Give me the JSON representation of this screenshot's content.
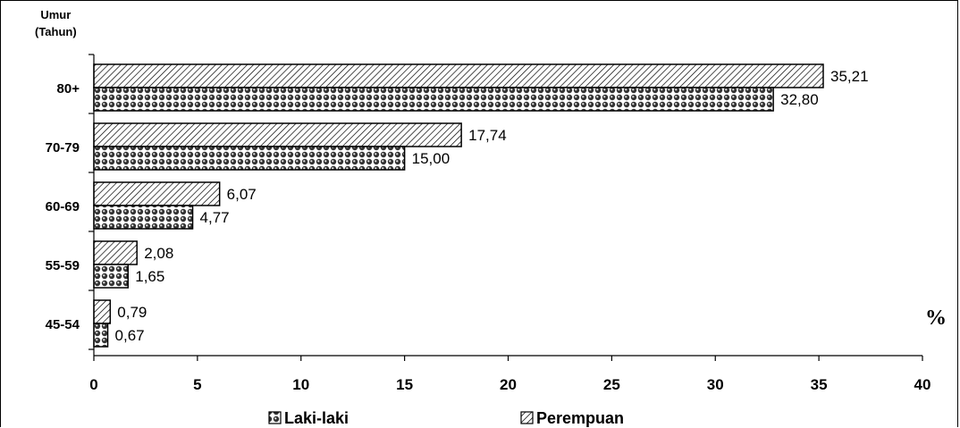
{
  "chart_data": {
    "type": "bar",
    "orientation": "horizontal",
    "ylabel": "Umur (Tahun)",
    "ylabel_lines": [
      "Umur",
      "(Tahun)"
    ],
    "unit_label": "%",
    "categories": [
      "80+",
      "70-79",
      "60-69",
      "55-59",
      "45-54"
    ],
    "series": [
      {
        "name": "Perempuan",
        "values": [
          35.21,
          17.74,
          6.07,
          2.08,
          0.79
        ],
        "labels": [
          "35,21",
          "17,74",
          "6,07",
          "2,08",
          "0,79"
        ],
        "pattern": "diagonal-hatch"
      },
      {
        "name": "Laki-laki",
        "values": [
          32.8,
          15.0,
          4.77,
          1.65,
          0.67
        ],
        "labels": [
          "32,80",
          "15,00",
          "4,77",
          "1,65",
          "0,67"
        ],
        "pattern": "dots"
      }
    ],
    "xlim": [
      0,
      40
    ],
    "xticks": [
      0,
      5,
      10,
      15,
      20,
      25,
      30,
      35,
      40
    ],
    "grid": false,
    "legend": {
      "placement": "bottom",
      "order": [
        "Laki-laki",
        "Perempuan"
      ]
    },
    "colors": {
      "bar_fill": "#ffffff",
      "pattern": "#000000",
      "axis": "#000000"
    }
  }
}
